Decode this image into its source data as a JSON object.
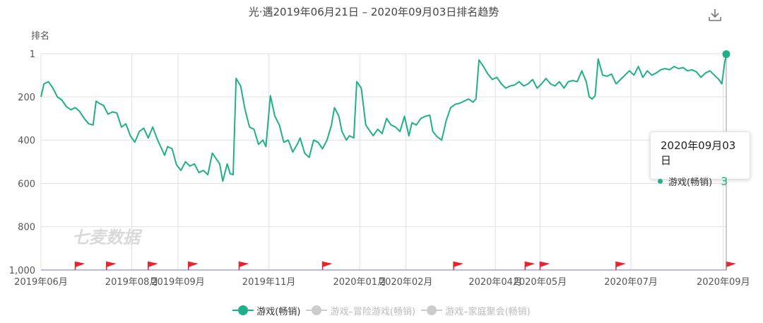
{
  "title": "光·遇2019年06月21日 – 2020年09月03日排名趋势",
  "y_axis_title": "排名",
  "watermark": "七麦数据",
  "icons": {
    "download": "download-icon",
    "event_flag": "red-flag-icon"
  },
  "colors": {
    "series_active": "#1fb08a",
    "series_inactive": "#cccccc",
    "flag": "#e8222e",
    "grid": "#e0e0e0",
    "axis": "#a7a3dd"
  },
  "tooltip": {
    "date": "2020年09月03日",
    "series": "游戏(畅销)",
    "value": "3"
  },
  "legend": [
    {
      "label": "游戏(畅销)",
      "active": true
    },
    {
      "label": "游戏–冒险游戏(畅销)",
      "active": false
    },
    {
      "label": "游戏–家庭聚会(畅销)",
      "active": false
    }
  ],
  "chart_data": {
    "type": "line",
    "title": "光·遇2019年06月21日 – 2020年09月03日排名趋势",
    "ylabel": "排名",
    "y_inverted": true,
    "ylim": [
      1,
      1000
    ],
    "y_ticks": [
      {
        "value": 1,
        "label": "1"
      },
      {
        "value": 200,
        "label": "200"
      },
      {
        "value": 400,
        "label": "400"
      },
      {
        "value": 600,
        "label": "600"
      },
      {
        "value": 800,
        "label": "800"
      },
      {
        "value": 1000,
        "label": "1,000"
      }
    ],
    "xlim": [
      "2019-06-01",
      "2020-09-03"
    ],
    "x_ticks": [
      {
        "date": "2019-06-01",
        "label": "2019年06月"
      },
      {
        "date": "2019-08-01",
        "label": "2019年08月"
      },
      {
        "date": "2019-09-01",
        "label": "2019年09月"
      },
      {
        "date": "2019-11-01",
        "label": "2019年11月"
      },
      {
        "date": "2020-01-01",
        "label": "2020年01月"
      },
      {
        "date": "2020-02-01",
        "label": "2020年02月"
      },
      {
        "date": "2020-04-01",
        "label": "2020年04月"
      },
      {
        "date": "2020-05-01",
        "label": "2020年05月"
      },
      {
        "date": "2020-07-01",
        "label": "2020年07月"
      },
      {
        "date": "2020-09-01",
        "label": "2020年09月"
      }
    ],
    "grid": true,
    "legend_position": "bottom-center",
    "event_flags": [
      "2019-06-24",
      "2019-07-15",
      "2019-08-12",
      "2019-09-08",
      "2019-10-12",
      "2019-12-07",
      "2020-03-04",
      "2020-04-21",
      "2020-05-01",
      "2020-06-21",
      "2020-09-03"
    ],
    "series": [
      {
        "name": "游戏(畅销)",
        "points": [
          [
            "2019-06-01",
            200
          ],
          [
            "2019-06-03",
            140
          ],
          [
            "2019-06-06",
            130
          ],
          [
            "2019-06-09",
            160
          ],
          [
            "2019-06-12",
            200
          ],
          [
            "2019-06-15",
            215
          ],
          [
            "2019-06-18",
            245
          ],
          [
            "2019-06-21",
            260
          ],
          [
            "2019-06-24",
            250
          ],
          [
            "2019-06-27",
            268
          ],
          [
            "2019-06-30",
            300
          ],
          [
            "2019-07-03",
            325
          ],
          [
            "2019-07-06",
            330
          ],
          [
            "2019-07-08",
            220
          ],
          [
            "2019-07-10",
            230
          ],
          [
            "2019-07-13",
            240
          ],
          [
            "2019-07-16",
            280
          ],
          [
            "2019-07-19",
            270
          ],
          [
            "2019-07-22",
            275
          ],
          [
            "2019-07-25",
            340
          ],
          [
            "2019-07-28",
            325
          ],
          [
            "2019-07-31",
            380
          ],
          [
            "2019-08-03",
            410
          ],
          [
            "2019-08-06",
            360
          ],
          [
            "2019-08-09",
            345
          ],
          [
            "2019-08-12",
            390
          ],
          [
            "2019-08-15",
            340
          ],
          [
            "2019-08-18",
            395
          ],
          [
            "2019-08-21",
            440
          ],
          [
            "2019-08-23",
            470
          ],
          [
            "2019-08-25",
            430
          ],
          [
            "2019-08-28",
            440
          ],
          [
            "2019-08-31",
            515
          ],
          [
            "2019-09-03",
            540
          ],
          [
            "2019-09-06",
            500
          ],
          [
            "2019-09-09",
            520
          ],
          [
            "2019-09-12",
            510
          ],
          [
            "2019-09-15",
            550
          ],
          [
            "2019-09-18",
            540
          ],
          [
            "2019-09-21",
            560
          ],
          [
            "2019-09-24",
            460
          ],
          [
            "2019-09-27",
            490
          ],
          [
            "2019-09-29",
            510
          ],
          [
            "2019-10-01",
            590
          ],
          [
            "2019-10-04",
            510
          ],
          [
            "2019-10-06",
            555
          ],
          [
            "2019-10-08",
            560
          ],
          [
            "2019-10-10",
            115
          ],
          [
            "2019-10-13",
            150
          ],
          [
            "2019-10-16",
            260
          ],
          [
            "2019-10-19",
            340
          ],
          [
            "2019-10-22",
            350
          ],
          [
            "2019-10-25",
            420
          ],
          [
            "2019-10-28",
            400
          ],
          [
            "2019-10-30",
            430
          ],
          [
            "2019-11-02",
            195
          ],
          [
            "2019-11-05",
            290
          ],
          [
            "2019-11-08",
            330
          ],
          [
            "2019-11-11",
            410
          ],
          [
            "2019-11-14",
            400
          ],
          [
            "2019-11-17",
            455
          ],
          [
            "2019-11-20",
            420
          ],
          [
            "2019-11-22",
            390
          ],
          [
            "2019-11-25",
            460
          ],
          [
            "2019-11-28",
            480
          ],
          [
            "2019-12-01",
            400
          ],
          [
            "2019-12-04",
            410
          ],
          [
            "2019-12-07",
            440
          ],
          [
            "2019-12-10",
            400
          ],
          [
            "2019-12-13",
            330
          ],
          [
            "2019-12-15",
            250
          ],
          [
            "2019-12-18",
            290
          ],
          [
            "2019-12-20",
            360
          ],
          [
            "2019-12-23",
            400
          ],
          [
            "2019-12-25",
            380
          ],
          [
            "2019-12-28",
            390
          ],
          [
            "2019-12-30",
            130
          ],
          [
            "2020-01-02",
            160
          ],
          [
            "2020-01-05",
            330
          ],
          [
            "2020-01-07",
            350
          ],
          [
            "2020-01-10",
            380
          ],
          [
            "2020-01-13",
            350
          ],
          [
            "2020-01-16",
            370
          ],
          [
            "2020-01-19",
            300
          ],
          [
            "2020-01-22",
            330
          ],
          [
            "2020-01-25",
            340
          ],
          [
            "2020-01-28",
            360
          ],
          [
            "2020-01-31",
            290
          ],
          [
            "2020-02-03",
            380
          ],
          [
            "2020-02-05",
            320
          ],
          [
            "2020-02-08",
            330
          ],
          [
            "2020-02-11",
            300
          ],
          [
            "2020-02-14",
            290
          ],
          [
            "2020-02-17",
            285
          ],
          [
            "2020-02-19",
            360
          ],
          [
            "2020-02-22",
            385
          ],
          [
            "2020-02-25",
            400
          ],
          [
            "2020-02-28",
            310
          ],
          [
            "2020-03-02",
            250
          ],
          [
            "2020-03-05",
            235
          ],
          [
            "2020-03-08",
            230
          ],
          [
            "2020-03-11",
            220
          ],
          [
            "2020-03-14",
            210
          ],
          [
            "2020-03-17",
            225
          ],
          [
            "2020-03-19",
            210
          ],
          [
            "2020-03-21",
            30
          ],
          [
            "2020-03-24",
            60
          ],
          [
            "2020-03-27",
            95
          ],
          [
            "2020-03-30",
            120
          ],
          [
            "2020-04-02",
            110
          ],
          [
            "2020-04-05",
            140
          ],
          [
            "2020-04-08",
            160
          ],
          [
            "2020-04-11",
            150
          ],
          [
            "2020-04-14",
            145
          ],
          [
            "2020-04-17",
            130
          ],
          [
            "2020-04-20",
            150
          ],
          [
            "2020-04-23",
            140
          ],
          [
            "2020-04-26",
            120
          ],
          [
            "2020-04-29",
            160
          ],
          [
            "2020-05-02",
            140
          ],
          [
            "2020-05-05",
            115
          ],
          [
            "2020-05-08",
            140
          ],
          [
            "2020-05-11",
            150
          ],
          [
            "2020-05-14",
            130
          ],
          [
            "2020-05-17",
            160
          ],
          [
            "2020-05-20",
            130
          ],
          [
            "2020-05-23",
            125
          ],
          [
            "2020-05-26",
            130
          ],
          [
            "2020-05-29",
            80
          ],
          [
            "2020-06-01",
            130
          ],
          [
            "2020-06-03",
            200
          ],
          [
            "2020-06-05",
            210
          ],
          [
            "2020-06-07",
            195
          ],
          [
            "2020-06-09",
            25
          ],
          [
            "2020-06-12",
            100
          ],
          [
            "2020-06-15",
            105
          ],
          [
            "2020-06-18",
            95
          ],
          [
            "2020-06-21",
            140
          ],
          [
            "2020-06-24",
            120
          ],
          [
            "2020-06-27",
            100
          ],
          [
            "2020-06-30",
            80
          ],
          [
            "2020-07-03",
            100
          ],
          [
            "2020-07-06",
            60
          ],
          [
            "2020-07-09",
            110
          ],
          [
            "2020-07-12",
            80
          ],
          [
            "2020-07-15",
            100
          ],
          [
            "2020-07-18",
            90
          ],
          [
            "2020-07-21",
            75
          ],
          [
            "2020-07-24",
            70
          ],
          [
            "2020-07-27",
            75
          ],
          [
            "2020-07-30",
            60
          ],
          [
            "2020-08-02",
            70
          ],
          [
            "2020-08-05",
            65
          ],
          [
            "2020-08-08",
            80
          ],
          [
            "2020-08-11",
            75
          ],
          [
            "2020-08-14",
            85
          ],
          [
            "2020-08-17",
            110
          ],
          [
            "2020-08-20",
            90
          ],
          [
            "2020-08-23",
            80
          ],
          [
            "2020-08-26",
            100
          ],
          [
            "2020-08-29",
            120
          ],
          [
            "2020-08-31",
            140
          ],
          [
            "2020-09-02",
            40
          ],
          [
            "2020-09-03",
            3
          ]
        ]
      },
      {
        "name": "游戏–冒险游戏(畅销)",
        "hidden": true,
        "points": []
      },
      {
        "name": "游戏–家庭聚会(畅销)",
        "hidden": true,
        "points": []
      }
    ]
  }
}
